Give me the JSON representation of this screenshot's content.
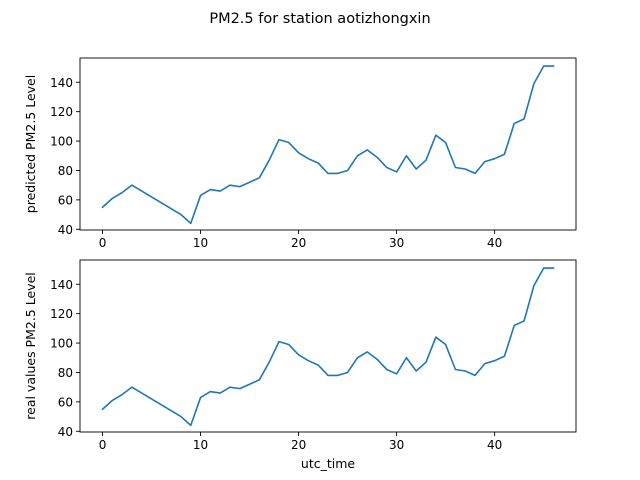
{
  "suptitle": "PM2.5 for station aotizhongxin",
  "line_color": "#1f77b4",
  "chart_data": [
    {
      "type": "line",
      "title": "",
      "xlabel": "",
      "ylabel": "predicted PM2.5 Level",
      "xlim": [
        -2.3,
        48.3
      ],
      "ylim": [
        39.5,
        156.5
      ],
      "xticks": [
        0,
        10,
        20,
        30,
        40
      ],
      "yticks": [
        40,
        60,
        80,
        100,
        120,
        140
      ],
      "grid": false,
      "legend": "none",
      "series": [
        {
          "x": [
            0,
            1,
            2,
            3,
            4,
            5,
            6,
            7,
            8,
            9,
            10,
            11,
            12,
            13,
            14,
            15,
            16,
            17,
            18,
            19,
            20,
            21,
            22,
            23,
            24,
            25,
            26,
            27,
            28,
            29,
            30,
            31,
            32,
            33,
            34,
            35,
            36,
            37,
            38,
            39,
            40,
            41,
            42,
            43,
            44,
            45,
            46
          ],
          "values": [
            55,
            61,
            65,
            70,
            66,
            62,
            58,
            54,
            50,
            44,
            63,
            67,
            66,
            70,
            69,
            72,
            75,
            87,
            101,
            99,
            92,
            88,
            85,
            78,
            78,
            80,
            90,
            94,
            89,
            82,
            79,
            90,
            81,
            87,
            104,
            99,
            82,
            81,
            78,
            86,
            88,
            91,
            112,
            115,
            139,
            151,
            151
          ]
        }
      ]
    },
    {
      "type": "line",
      "title": "",
      "xlabel": "utc_time",
      "ylabel": "real values PM2.5 Level",
      "xlim": [
        -2.3,
        48.3
      ],
      "ylim": [
        39.5,
        156.5
      ],
      "xticks": [
        0,
        10,
        20,
        30,
        40
      ],
      "yticks": [
        40,
        60,
        80,
        100,
        120,
        140
      ],
      "grid": false,
      "legend": "none",
      "series": [
        {
          "x": [
            0,
            1,
            2,
            3,
            4,
            5,
            6,
            7,
            8,
            9,
            10,
            11,
            12,
            13,
            14,
            15,
            16,
            17,
            18,
            19,
            20,
            21,
            22,
            23,
            24,
            25,
            26,
            27,
            28,
            29,
            30,
            31,
            32,
            33,
            34,
            35,
            36,
            37,
            38,
            39,
            40,
            41,
            42,
            43,
            44,
            45,
            46
          ],
          "values": [
            55,
            61,
            65,
            70,
            66,
            62,
            58,
            54,
            50,
            44,
            63,
            67,
            66,
            70,
            69,
            72,
            75,
            87,
            101,
            99,
            92,
            88,
            85,
            78,
            78,
            80,
            90,
            94,
            89,
            82,
            79,
            90,
            81,
            87,
            104,
            99,
            82,
            81,
            78,
            86,
            88,
            91,
            112,
            115,
            139,
            151,
            151
          ]
        }
      ]
    }
  ]
}
